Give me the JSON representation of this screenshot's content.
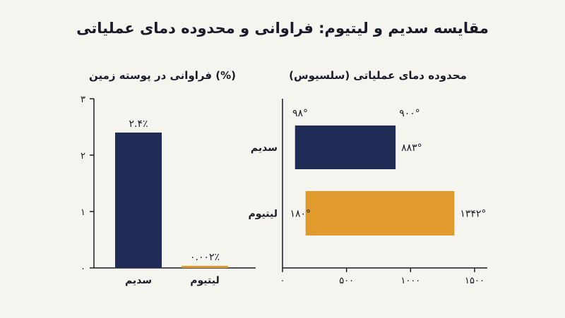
{
  "title": "مقایسه سدیم و لیتیوم: فراوانی و محدوده دمای عملیاتی",
  "colors": {
    "background": "#f6f4ee",
    "sodium": "#1f2d56",
    "lithium": "#e09a2e",
    "text": "#1a1a2a"
  },
  "chart_data": [
    {
      "type": "bar",
      "title": "فراوانی در پوسته زمین (%)",
      "categories": [
        "سدیم",
        "لیتیوم"
      ],
      "values": [
        2.4,
        0.002
      ],
      "data_labels": [
        "۲.۴٪",
        "۰.۰۰۲٪"
      ],
      "ylim": [
        0,
        3
      ],
      "yticks": [
        0,
        1,
        2,
        3
      ],
      "ytick_labels": [
        "۰",
        "۱",
        "۲",
        "۳"
      ],
      "grid": false
    },
    {
      "type": "bar",
      "orientation": "horizontal-range",
      "title": "محدوده دمای عملیاتی (سلسیوس)",
      "categories": [
        "سدیم",
        "لیتیوم"
      ],
      "ranges": [
        [
          98,
          883
        ],
        [
          180,
          1342
        ]
      ],
      "low_labels": [
        "۹۸°",
        "۱۸۰°"
      ],
      "high_labels": [
        "۸۸۳°",
        "۱۳۴۲°"
      ],
      "extra_label": "۹۰۰°",
      "xlim": [
        0,
        1500
      ],
      "xticks": [
        0,
        500,
        1000,
        1500
      ],
      "xtick_labels": [
        "۰",
        "۵۰۰",
        "۱۰۰۰",
        "۱۵۰۰"
      ],
      "grid": false
    }
  ]
}
